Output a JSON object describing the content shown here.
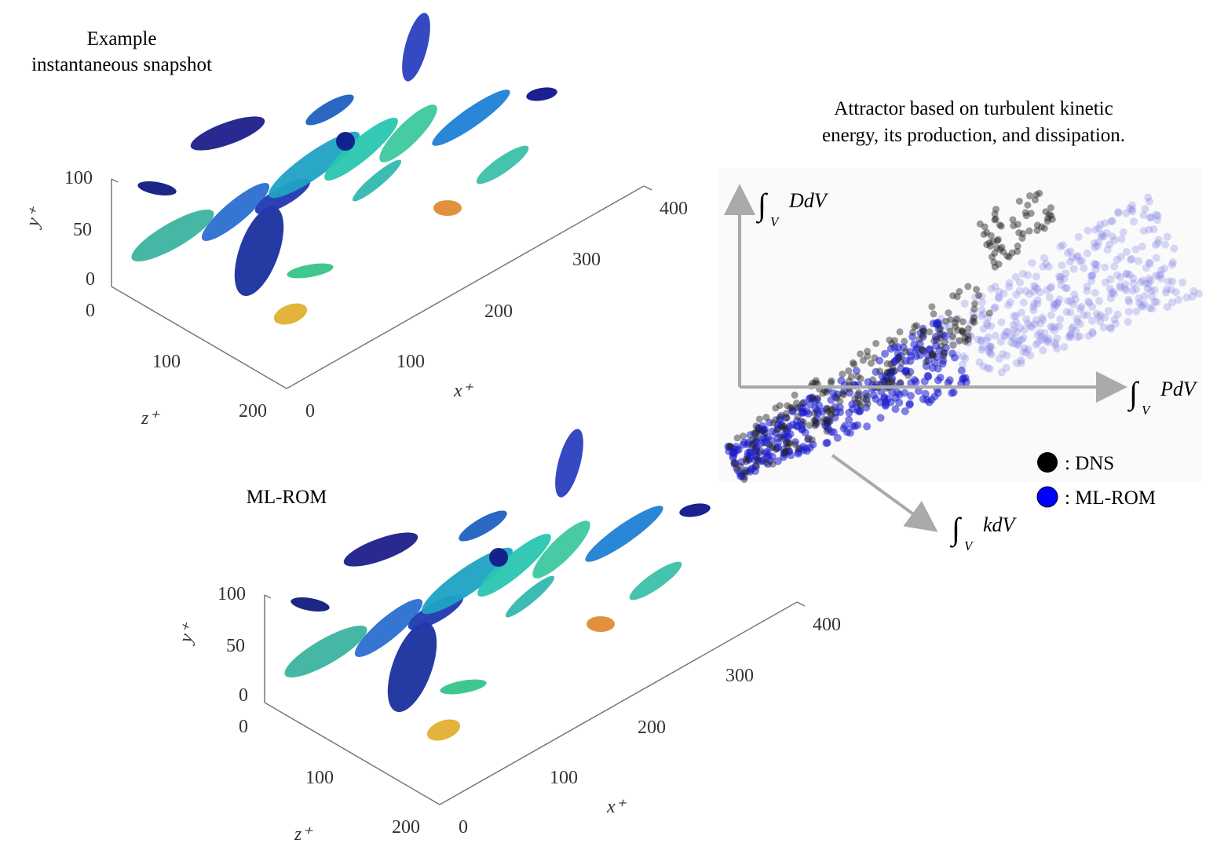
{
  "snapshot": {
    "title": [
      "Example",
      "instantaneous snapshot"
    ],
    "y_label": "y⁺",
    "y_ticks": [
      "0",
      "50",
      "100"
    ],
    "z_label": "z⁺",
    "z_ticks": [
      "0",
      "100",
      "200"
    ],
    "x_label": "x⁺",
    "x_ticks": [
      "0",
      "100",
      "200",
      "300",
      "400"
    ]
  },
  "rom": {
    "title": "ML-ROM",
    "y_label": "y⁺",
    "y_ticks": [
      "0",
      "50",
      "100"
    ],
    "z_label": "z⁺",
    "z_ticks": [
      "0",
      "100",
      "200"
    ],
    "x_label": "x⁺",
    "x_ticks": [
      "0",
      "100",
      "200",
      "300",
      "400"
    ]
  },
  "attractor": {
    "title": [
      "Attractor based on turbulent kinetic",
      "energy, its production, and dissipation."
    ],
    "axes": [
      {
        "sign": "∫",
        "sub": "V",
        "body": "DdV"
      },
      {
        "sign": "∫",
        "sub": "V",
        "body": "PdV"
      },
      {
        "sign": "∫",
        "sub": "V",
        "body": "kdV"
      }
    ],
    "legend": [
      ": DNS",
      ": ML-ROM"
    ]
  }
}
